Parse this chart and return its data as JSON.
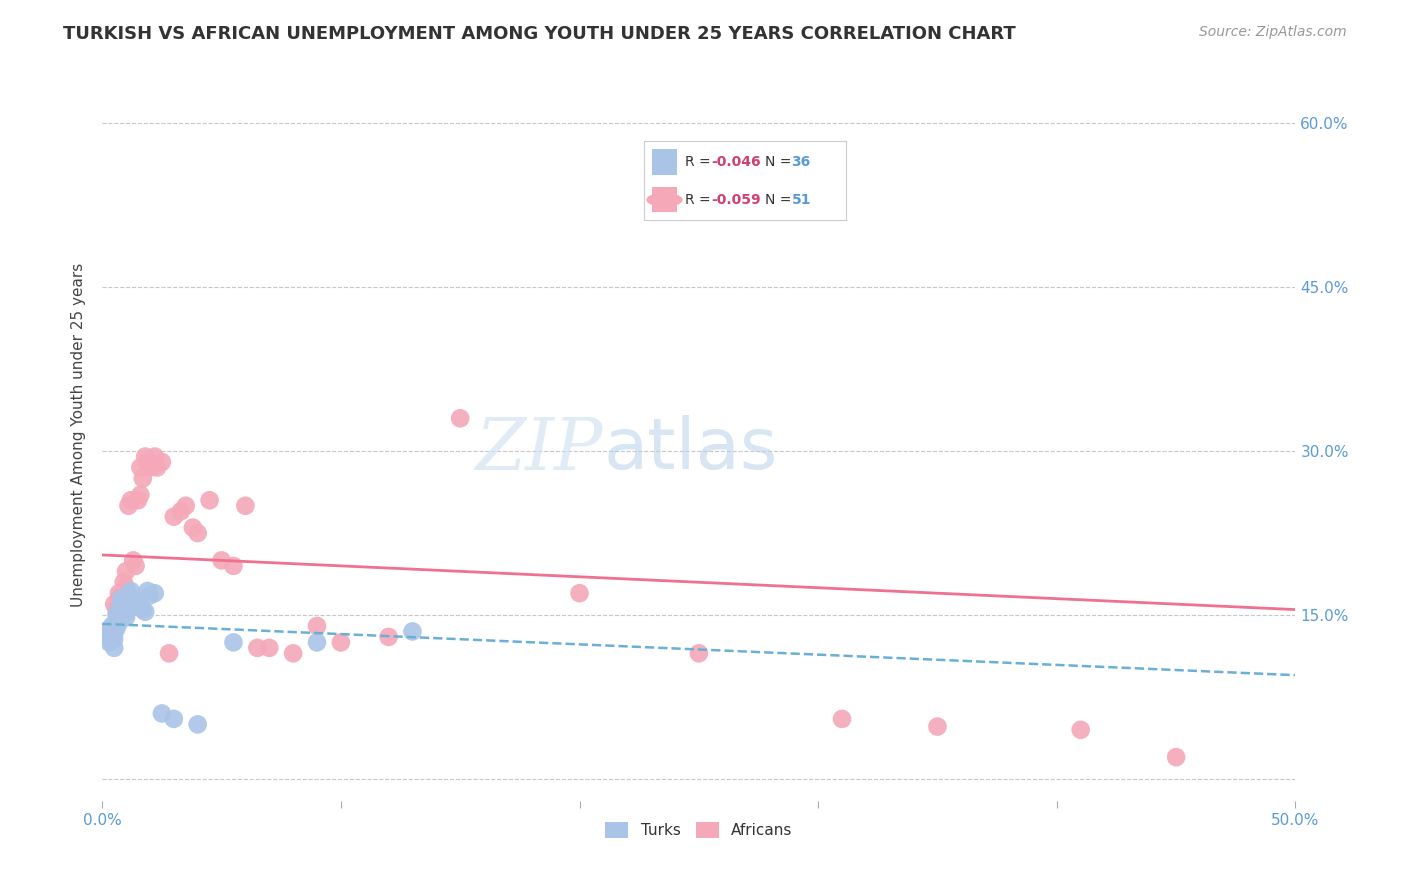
{
  "title": "TURKISH VS AFRICAN UNEMPLOYMENT AMONG YOUTH UNDER 25 YEARS CORRELATION CHART",
  "source": "Source: ZipAtlas.com",
  "ylabel": "Unemployment Among Youth under 25 years",
  "xlim": [
    0,
    0.5
  ],
  "ylim": [
    -0.02,
    0.65
  ],
  "ytick_positions": [
    0.0,
    0.15,
    0.3,
    0.45,
    0.6
  ],
  "bg_color": "#ffffff",
  "grid_color": "#c8c8c8",
  "turks_color": "#aac4e8",
  "africans_color": "#f4a8b8",
  "turks_line_color": "#6aafd6",
  "africans_line_color": "#f07090",
  "africans_line_x": [
    0.0,
    0.5
  ],
  "africans_line_y": [
    0.205,
    0.155
  ],
  "turks_line_x": [
    0.0,
    0.5
  ],
  "turks_line_y": [
    0.142,
    0.095
  ],
  "turks_x": [
    0.002,
    0.003,
    0.004,
    0.004,
    0.005,
    0.005,
    0.005,
    0.006,
    0.006,
    0.006,
    0.007,
    0.007,
    0.007,
    0.008,
    0.008,
    0.009,
    0.009,
    0.01,
    0.01,
    0.011,
    0.012,
    0.013,
    0.014,
    0.015,
    0.016,
    0.017,
    0.018,
    0.019,
    0.02,
    0.022,
    0.025,
    0.03,
    0.04,
    0.055,
    0.09,
    0.13
  ],
  "turks_y": [
    0.13,
    0.125,
    0.135,
    0.14,
    0.128,
    0.133,
    0.12,
    0.138,
    0.145,
    0.15,
    0.155,
    0.148,
    0.143,
    0.16,
    0.165,
    0.155,
    0.158,
    0.152,
    0.148,
    0.168,
    0.172,
    0.165,
    0.162,
    0.16,
    0.158,
    0.155,
    0.153,
    0.172,
    0.168,
    0.17,
    0.06,
    0.055,
    0.05,
    0.125,
    0.125,
    0.135
  ],
  "africans_x": [
    0.002,
    0.003,
    0.004,
    0.005,
    0.005,
    0.006,
    0.006,
    0.007,
    0.007,
    0.008,
    0.008,
    0.009,
    0.01,
    0.01,
    0.011,
    0.012,
    0.013,
    0.014,
    0.015,
    0.016,
    0.016,
    0.017,
    0.018,
    0.019,
    0.02,
    0.022,
    0.023,
    0.025,
    0.028,
    0.03,
    0.033,
    0.035,
    0.038,
    0.04,
    0.045,
    0.05,
    0.055,
    0.06,
    0.065,
    0.07,
    0.08,
    0.09,
    0.1,
    0.12,
    0.15,
    0.2,
    0.25,
    0.31,
    0.35,
    0.41,
    0.45
  ],
  "africans_y": [
    0.13,
    0.135,
    0.128,
    0.14,
    0.16,
    0.155,
    0.145,
    0.17,
    0.165,
    0.15,
    0.168,
    0.18,
    0.175,
    0.19,
    0.25,
    0.255,
    0.2,
    0.195,
    0.255,
    0.26,
    0.285,
    0.275,
    0.295,
    0.29,
    0.285,
    0.295,
    0.285,
    0.29,
    0.115,
    0.24,
    0.245,
    0.25,
    0.23,
    0.225,
    0.255,
    0.2,
    0.195,
    0.25,
    0.12,
    0.12,
    0.115,
    0.14,
    0.125,
    0.13,
    0.33,
    0.17,
    0.115,
    0.055,
    0.048,
    0.045,
    0.02
  ]
}
